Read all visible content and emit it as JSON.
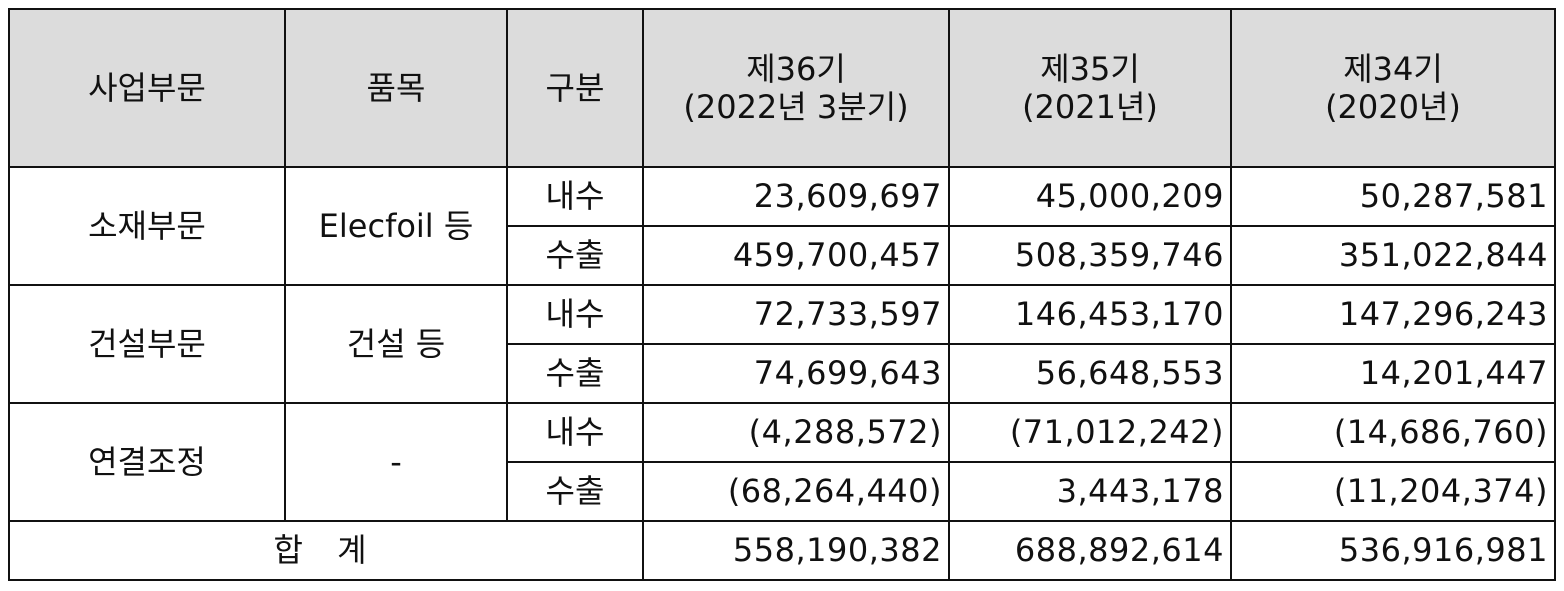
{
  "header": {
    "segment": "사업부문",
    "item": "품목",
    "category": "구분",
    "periods": [
      {
        "line1": "제36기",
        "line2": "(2022년 3분기)"
      },
      {
        "line1": "제35기",
        "line2": "(2021년)"
      },
      {
        "line1": "제34기",
        "line2": "(2020년)"
      }
    ]
  },
  "segments": [
    {
      "name": "소재부문",
      "item": "Elecfoil 등",
      "rows": [
        {
          "category": "내수",
          "values": [
            "23,609,697",
            "45,000,209",
            "50,287,581"
          ]
        },
        {
          "category": "수출",
          "values": [
            "459,700,457",
            "508,359,746",
            "351,022,844"
          ]
        }
      ]
    },
    {
      "name": "건설부문",
      "item": "건설 등",
      "rows": [
        {
          "category": "내수",
          "values": [
            "72,733,597",
            "146,453,170",
            "147,296,243"
          ]
        },
        {
          "category": "수출",
          "values": [
            "74,699,643",
            "56,648,553",
            "14,201,447"
          ]
        }
      ]
    },
    {
      "name": "연결조정",
      "item": "-",
      "rows": [
        {
          "category": "내수",
          "values": [
            "(4,288,572)",
            "(71,012,242)",
            "(14,686,760)"
          ]
        },
        {
          "category": "수출",
          "values": [
            "(68,264,440)",
            "3,443,178",
            "(11,204,374)"
          ]
        }
      ]
    }
  ],
  "total": {
    "label": "합 계",
    "values": [
      "558,190,382",
      "688,892,614",
      "536,916,981"
    ]
  }
}
